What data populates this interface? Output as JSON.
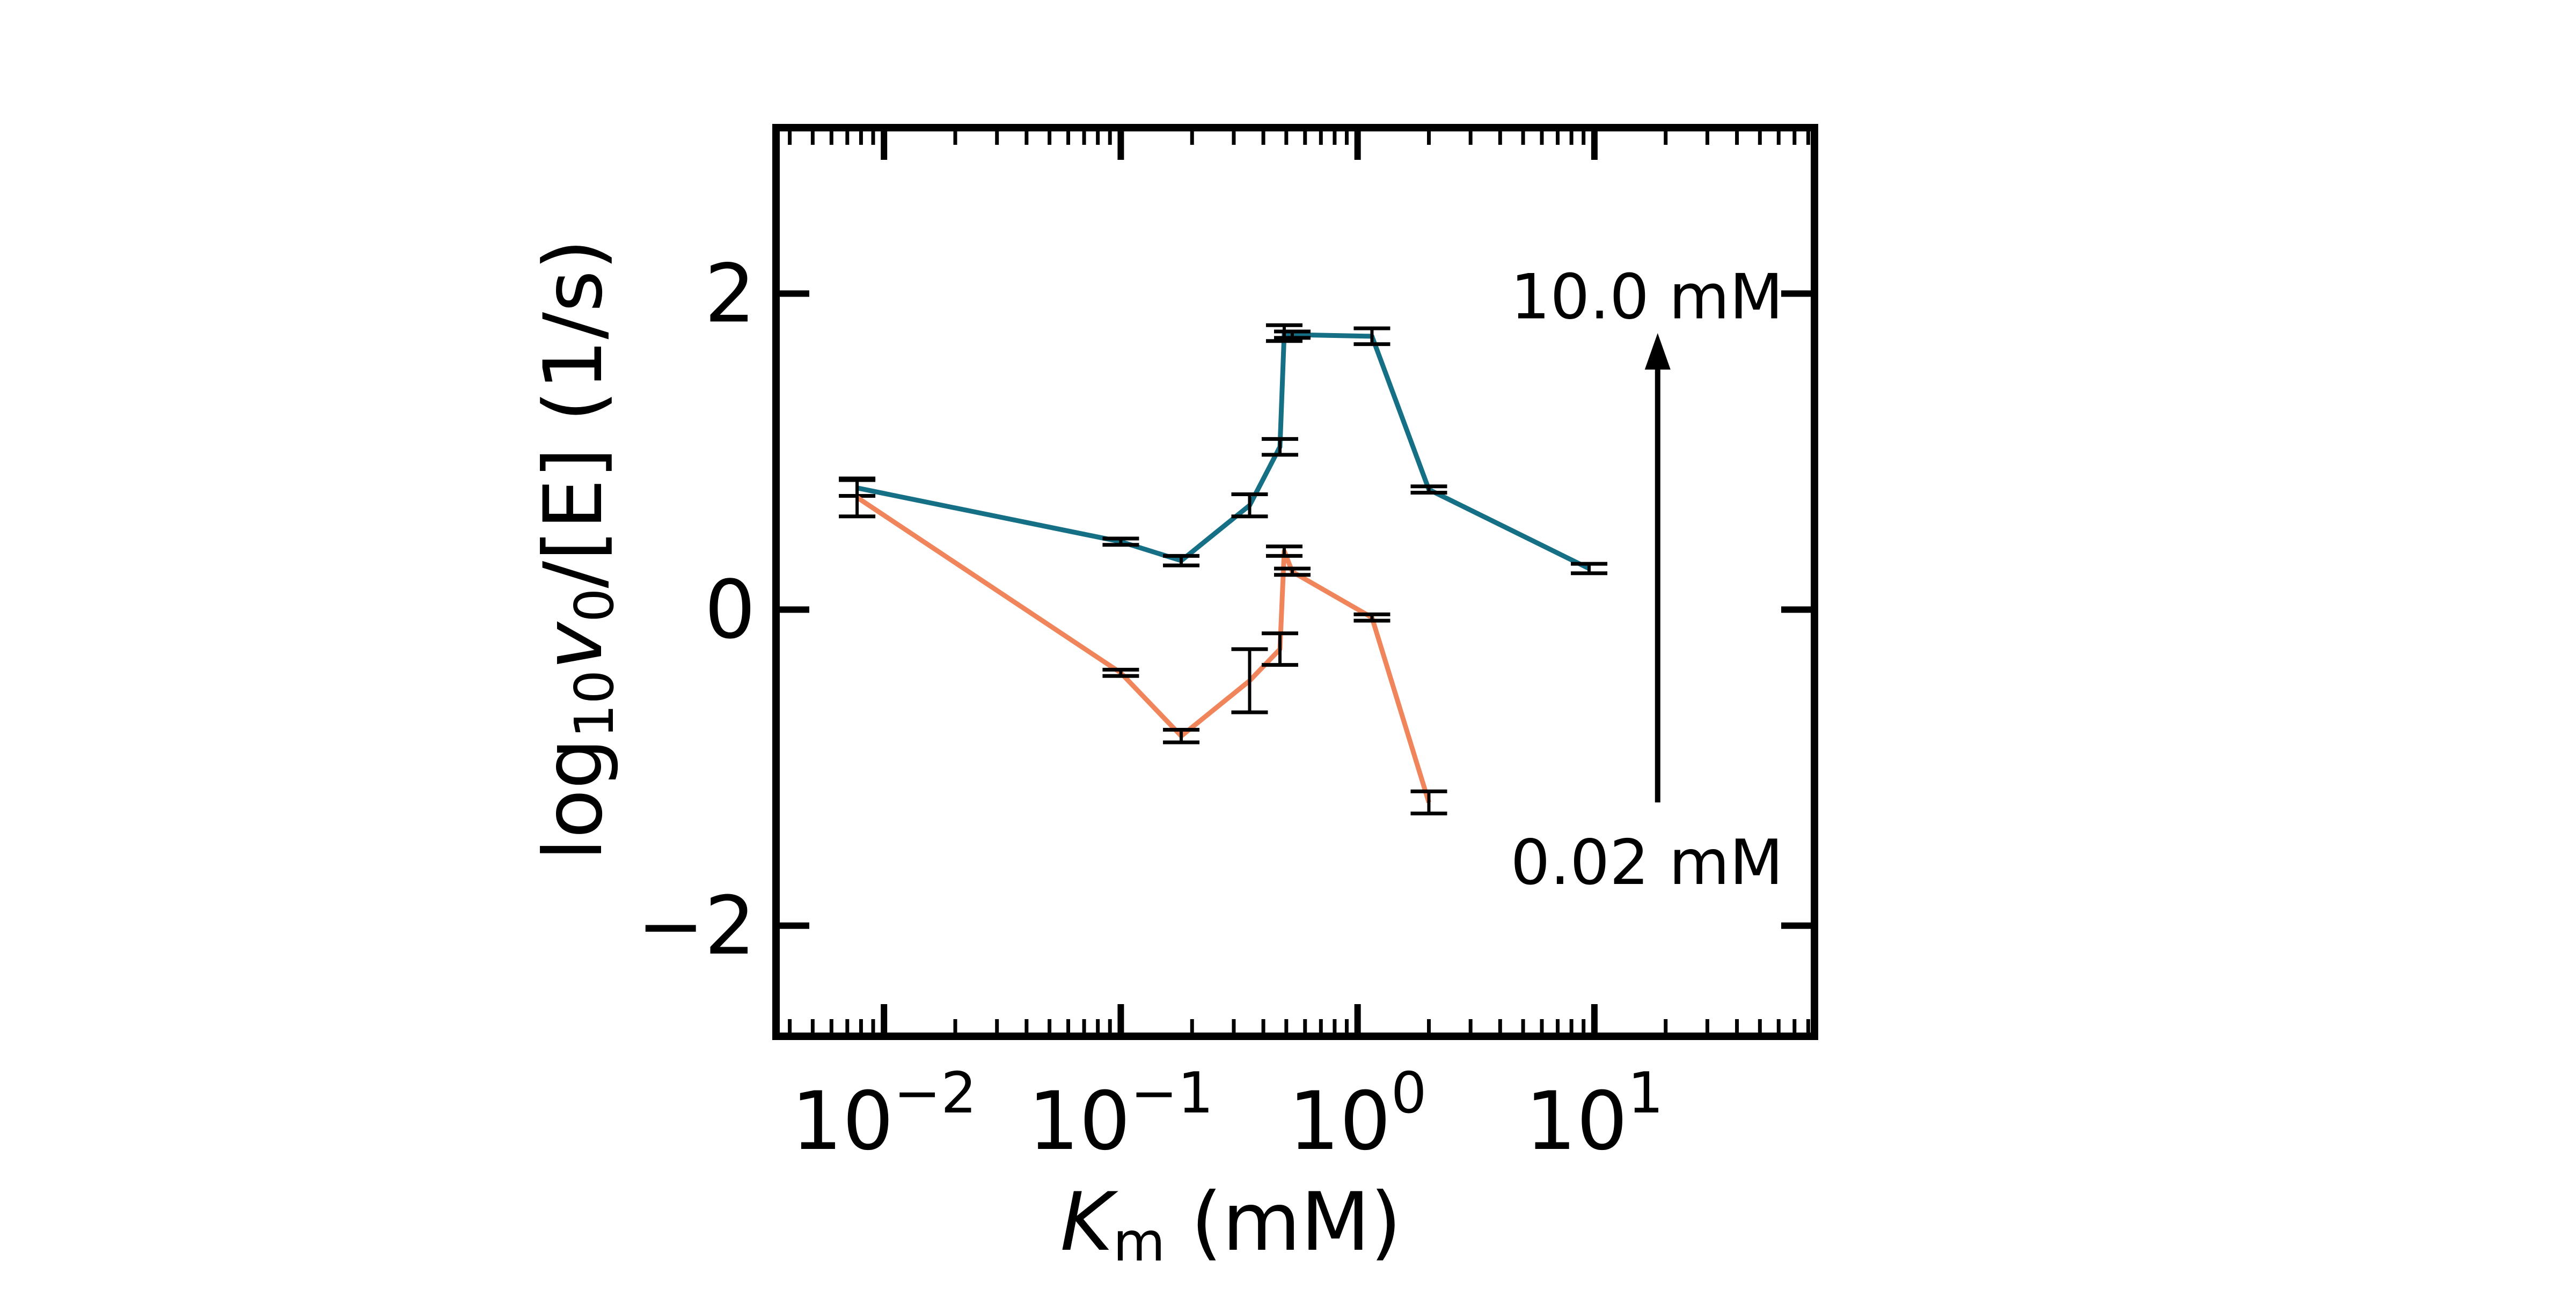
{
  "chart_data": {
    "type": "line",
    "title": "",
    "xlabel": "K_m (mM)",
    "xlabel_parts": {
      "italic": "K",
      "sub": "m",
      "rest": " (mM)"
    },
    "ylabel": "log10 v0/[E] (1/s)",
    "ylabel_parts": {
      "pre": "log",
      "sub1": "10",
      "italic": "v",
      "sub2": "0",
      "rest": "/[E] (1/s)"
    },
    "x_scale": "log",
    "xlim": [
      0.0035,
      85
    ],
    "ylim": [
      -2.7,
      3.05
    ],
    "x_ticks": [
      {
        "value": 0.01,
        "base": "10",
        "exp": "−2"
      },
      {
        "value": 0.1,
        "base": "10",
        "exp": "−1"
      },
      {
        "value": 1,
        "base": "10",
        "exp": "0"
      },
      {
        "value": 10,
        "base": "10",
        "exp": "1"
      }
    ],
    "y_ticks": [
      {
        "value": 2,
        "label": "2"
      },
      {
        "value": 0,
        "label": "0"
      },
      {
        "value": -2,
        "label": "−2"
      }
    ],
    "grid": false,
    "legend": "none",
    "series": [
      {
        "color": "#156f85",
        "points": [
          {
            "x": 0.0077,
            "y": 0.77,
            "err": 0.05
          },
          {
            "x": 0.1,
            "y": 0.43,
            "err": 0.02
          },
          {
            "x": 0.18,
            "y": 0.31,
            "err": 0.03
          },
          {
            "x": 0.35,
            "y": 0.66,
            "err": 0.07
          },
          {
            "x": 0.47,
            "y": 1.03,
            "err": 0.05
          },
          {
            "x": 0.49,
            "y": 1.75,
            "err": 0.05
          },
          {
            "x": 0.53,
            "y": 1.74,
            "err": 0.02
          },
          {
            "x": 1.15,
            "y": 1.73,
            "err": 0.05
          },
          {
            "x": 2.0,
            "y": 0.76,
            "err": 0.02
          },
          {
            "x": 9.5,
            "y": 0.26,
            "err": 0.03
          }
        ]
      },
      {
        "color": "#f0845a",
        "points": [
          {
            "x": 0.0077,
            "y": 0.71,
            "err": 0.12
          },
          {
            "x": 0.1,
            "y": -0.4,
            "err": 0.02
          },
          {
            "x": 0.18,
            "y": -0.8,
            "err": 0.04
          },
          {
            "x": 0.35,
            "y": -0.45,
            "err": 0.2
          },
          {
            "x": 0.47,
            "y": -0.25,
            "err": 0.1
          },
          {
            "x": 0.49,
            "y": 0.37,
            "err": 0.03
          },
          {
            "x": 0.53,
            "y": 0.24,
            "err": 0.02
          },
          {
            "x": 1.15,
            "y": -0.05,
            "err": 0.02
          },
          {
            "x": 2.0,
            "y": -1.22,
            "err": 0.07
          }
        ]
      }
    ],
    "annotations": {
      "arrow": {
        "x": 18.5,
        "y_from": -1.22,
        "y_to": 1.75
      },
      "top_label": {
        "text": "10.0 mM",
        "x": 18.5,
        "y": 1.87
      },
      "bottom_label": {
        "text": "0.02 mM",
        "x": 18.5,
        "y": -1.6
      }
    }
  }
}
